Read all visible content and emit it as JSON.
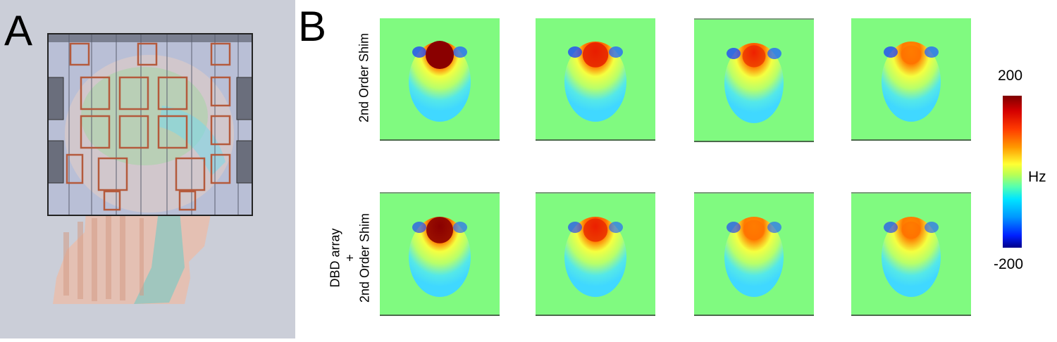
{
  "panels": {
    "a": {
      "letter": "A"
    },
    "b": {
      "letter": "B",
      "row_labels": {
        "top": "2nd Order Shim",
        "bottom_line1": "DBD array",
        "bottom_line2": "+",
        "bottom_line3": "2nd Order Shim"
      },
      "colorbar": {
        "max": "200",
        "min": "-200",
        "unit": "Hz"
      },
      "columns": 4,
      "rows": 2
    }
  },
  "colors": {
    "background_field": "#80fa80",
    "panel_a_background": "#cbced8",
    "colormap": "jet"
  }
}
